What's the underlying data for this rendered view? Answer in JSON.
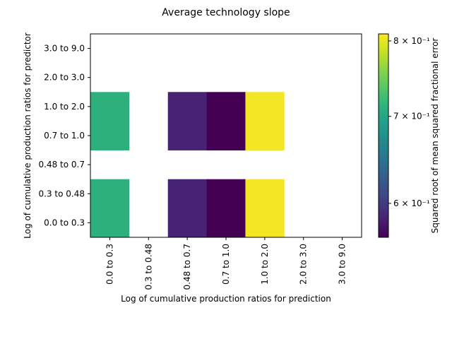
{
  "chart_data": {
    "type": "heatmap",
    "title": "Average technology slope",
    "xlabel": "Log of cumulative production ratios for prediction",
    "ylabel": "Log of cumulative production ratios for predictor",
    "x_categories": [
      "0.0 to 0.3",
      "0.3 to 0.48",
      "0.48 to 0.7",
      "0.7 to 1.0",
      "1.0 to 2.0",
      "2.0 to 3.0",
      "3.0 to 9.0"
    ],
    "y_categories": [
      "0.0 to 0.3",
      "0.3 to 0.48",
      "0.48 to 0.7",
      "0.7 to 1.0",
      "1.0 to 2.0",
      "2.0 to 3.0",
      "3.0 to 9.0"
    ],
    "values": [
      [
        0.71,
        null,
        0.585,
        0.565,
        0.805,
        null,
        null
      ],
      [
        0.71,
        null,
        0.585,
        0.565,
        0.805,
        null,
        null
      ],
      [
        null,
        null,
        null,
        null,
        null,
        null,
        null
      ],
      [
        0.71,
        null,
        0.585,
        0.565,
        0.805,
        null,
        null
      ],
      [
        0.71,
        null,
        0.585,
        0.565,
        0.805,
        null,
        null
      ],
      [
        null,
        null,
        null,
        null,
        null,
        null,
        null
      ],
      [
        null,
        null,
        null,
        null,
        null,
        null,
        null
      ]
    ],
    "colorbar": {
      "label": "Squared root of mean squared fractional error",
      "scale": "log",
      "range": [
        0.565,
        0.81
      ],
      "colormap": "viridis",
      "ticks": [
        {
          "value": 0.6,
          "label": "6 × 10⁻¹"
        },
        {
          "value": 0.7,
          "label": "7 × 10⁻¹"
        },
        {
          "value": 0.8,
          "label": "8 × 10⁻¹"
        }
      ]
    }
  }
}
